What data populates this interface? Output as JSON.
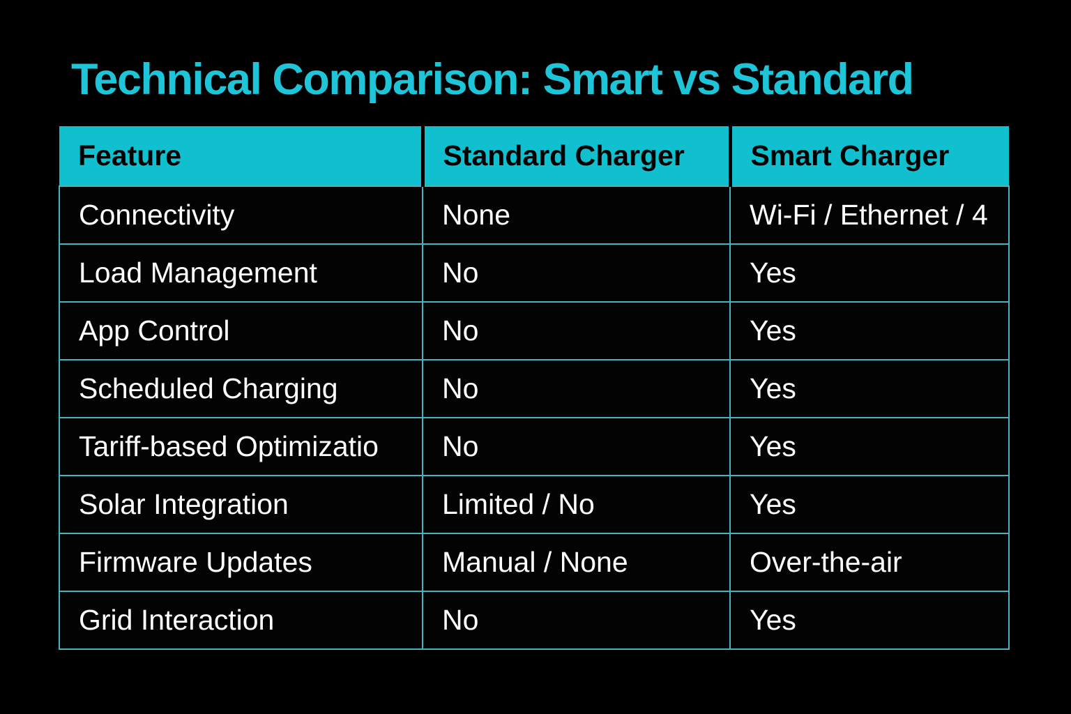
{
  "title": "Technical Comparison: Smart vs Standard",
  "colors": {
    "background": "#000000",
    "title_accent": "#1EC4D8",
    "header_background": "#10C0CF",
    "header_text": "#000000",
    "cell_border": "#46B4BE",
    "cell_text": "#FFFFFF"
  },
  "table": {
    "headers": [
      "Feature",
      "Standard Charger",
      "Smart Charger"
    ],
    "rows": [
      {
        "feature": "Connectivity",
        "standard": "None",
        "smart": "Wi-Fi / Ethernet / 4"
      },
      {
        "feature": "Load Management",
        "standard": "No",
        "smart": "Yes"
      },
      {
        "feature": "App Control",
        "standard": "No",
        "smart": "Yes"
      },
      {
        "feature": "Scheduled Charging",
        "standard": "No",
        "smart": "Yes"
      },
      {
        "feature": "Tariff-based Optimizatio",
        "standard": "No",
        "smart": "Yes"
      },
      {
        "feature": "Solar Integration",
        "standard": "Limited / No",
        "smart": "Yes"
      },
      {
        "feature": "Firmware Updates",
        "standard": "Manual / None",
        "smart": "Over-the-air"
      },
      {
        "feature": "Grid Interaction",
        "standard": "No",
        "smart": "Yes"
      }
    ]
  }
}
